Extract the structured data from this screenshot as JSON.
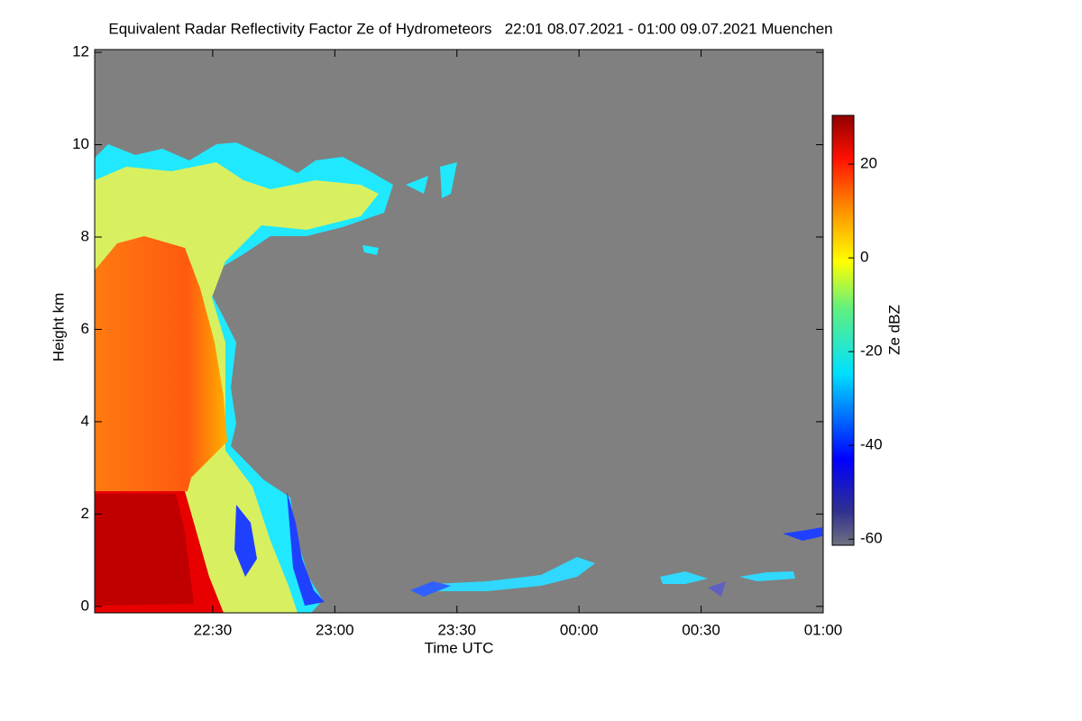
{
  "chart_data": {
    "type": "heatmap",
    "title": "Equivalent Radar Reflectivity Factor Ze of Hydrometeors   22:01 08.07.2021 - 01:00 09.07.2021 Muenchen",
    "xlabel": "Time UTC",
    "ylabel": "Height km",
    "xlim": [
      1321,
      1500
    ],
    "xticks": [
      {
        "value": 1350,
        "label": "22:30"
      },
      {
        "value": 1380,
        "label": "23:00"
      },
      {
        "value": 1410,
        "label": "23:30"
      },
      {
        "value": 1440,
        "label": "00:00"
      },
      {
        "value": 1470,
        "label": "00:30"
      },
      {
        "value": 1500,
        "label": "01:00"
      }
    ],
    "ylim": [
      -0.14,
      12.06
    ],
    "yticks": [
      0,
      2,
      4,
      6,
      8,
      10,
      12
    ],
    "colorbar": {
      "label": "Ze dBZ",
      "lim": [
        -61.3,
        30.4
      ],
      "ticks": [
        -60,
        -40,
        -20,
        0,
        20
      ]
    }
  }
}
